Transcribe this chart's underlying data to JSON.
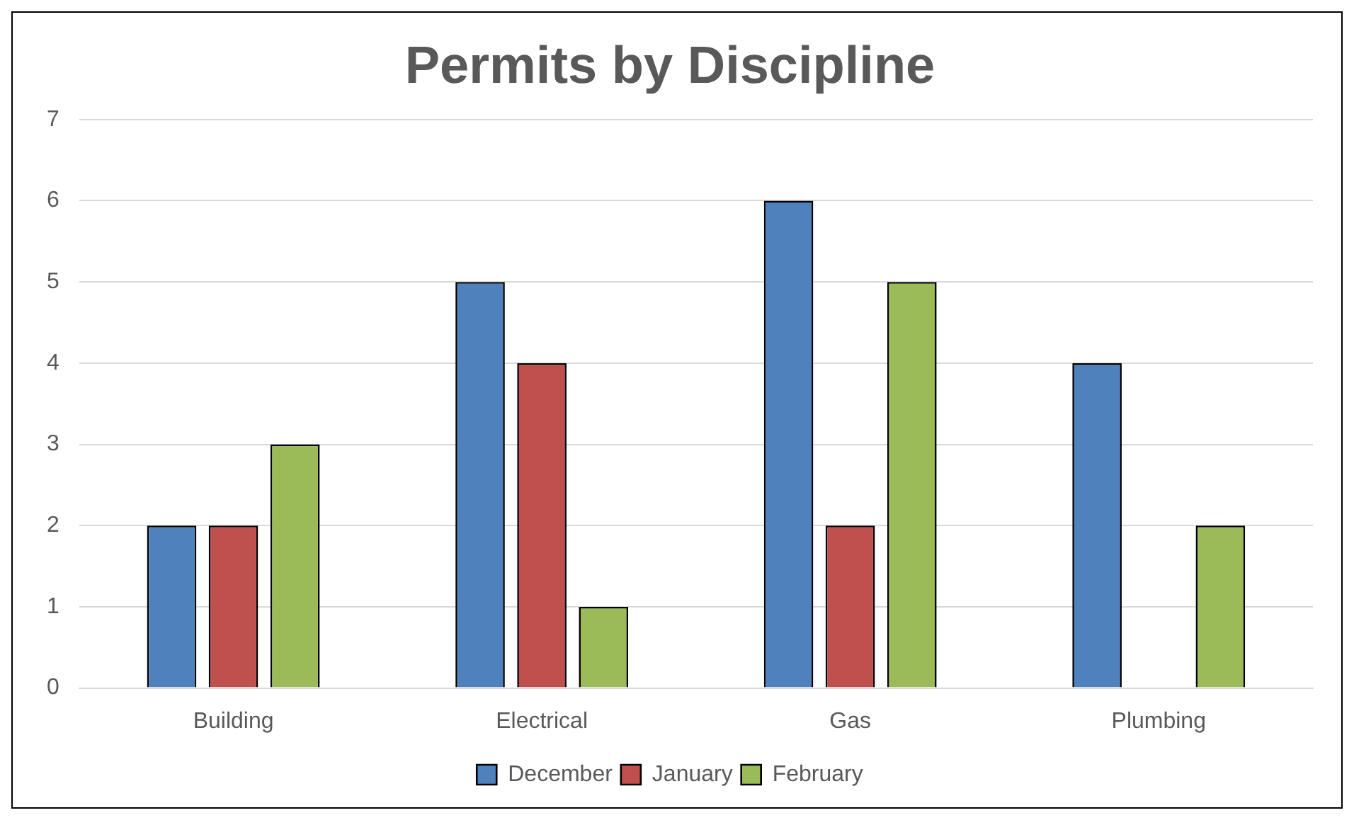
{
  "chart_data": {
    "type": "bar",
    "title": "Permits by Discipline",
    "categories": [
      "Building",
      "Electrical",
      "Gas",
      "Plumbing"
    ],
    "series": [
      {
        "name": "December",
        "color": "#4f81bd",
        "values": [
          2,
          5,
          6,
          4
        ]
      },
      {
        "name": "January",
        "color": "#c0504d",
        "values": [
          2,
          4,
          2,
          0
        ]
      },
      {
        "name": "February",
        "color": "#9bbb59",
        "values": [
          3,
          1,
          5,
          2
        ]
      }
    ],
    "ylim": [
      0,
      7
    ],
    "yticks": [
      0,
      1,
      2,
      3,
      4,
      5,
      6,
      7
    ],
    "grid": "y",
    "legend": "bottom"
  }
}
